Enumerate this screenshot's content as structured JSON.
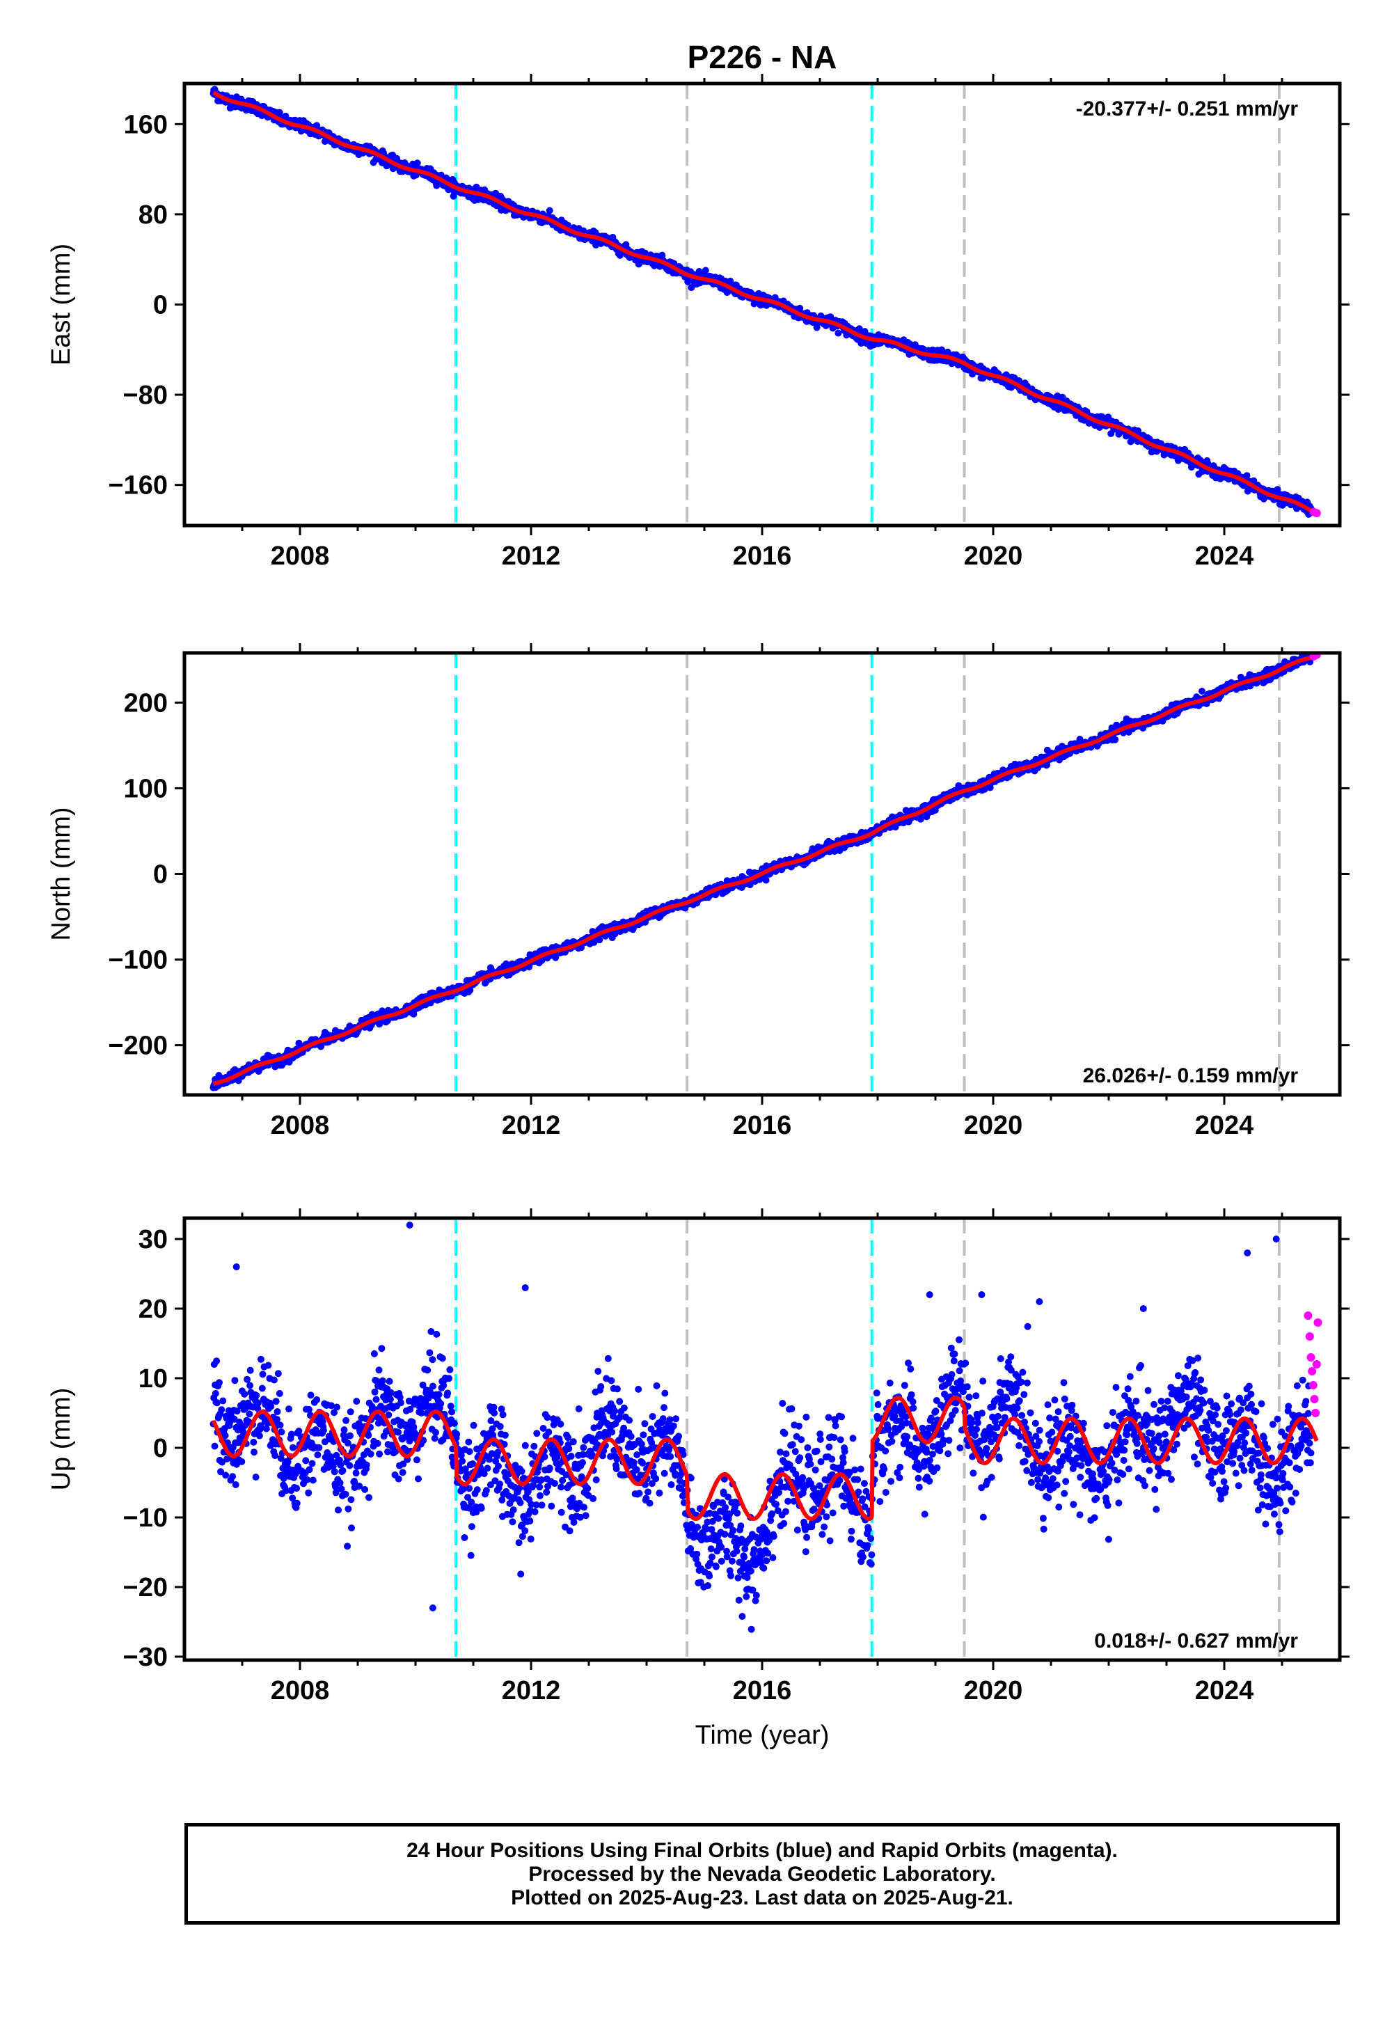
{
  "title": "P226 - NA",
  "caption": [
    "24 Hour Positions Using Final Orbits (blue) and Rapid Orbits (magenta).",
    "Processed by the Nevada Geodetic Laboratory.",
    "Plotted on 2025-Aug-23. Last data on 2025-Aug-21."
  ],
  "colors": {
    "final": "#0000ff",
    "rapid": "#ff00ff",
    "model": "#ff0000",
    "equipment_change": "#00ffff",
    "other_event": "#c0c0c0"
  },
  "chart_data": [
    {
      "type": "scatter",
      "ylabel": "East (mm)",
      "xlabel": "",
      "xlim": [
        2006.0,
        2026.0
      ],
      "ylim": [
        -196,
        196
      ],
      "yticks": [
        160,
        80,
        0,
        -80,
        -160
      ],
      "xticks": [
        2008,
        2012,
        2016,
        2020,
        2024
      ],
      "rate_text": "-20.377+/- 0.251 mm/yr",
      "rate_position": "top-right",
      "start": [
        2006.5,
        188
      ],
      "end": [
        2025.6,
        -185
      ],
      "series": [
        {
          "name": "Final Orbits (blue)",
          "x_range": [
            2006.5,
            2025.5
          ],
          "noise_mm": 2.5
        },
        {
          "name": "Rapid Orbits (magenta)",
          "x": [
            2025.55,
            2025.6
          ],
          "y": [
            -184,
            -185
          ]
        }
      ],
      "model": {
        "trend_anchor": [
          [
            2006.5,
            188
          ],
          [
            2010.7,
            105
          ],
          [
            2014.7,
            28
          ],
          [
            2017.9,
            -30
          ],
          [
            2019.5,
            -52
          ],
          [
            2025.6,
            -185
          ]
        ]
      }
    },
    {
      "type": "scatter",
      "ylabel": "North (mm)",
      "xlabel": "",
      "xlim": [
        2006.0,
        2026.0
      ],
      "ylim": [
        -258,
        258
      ],
      "yticks": [
        200,
        100,
        0,
        -100,
        -200
      ],
      "xticks": [
        2008,
        2012,
        2016,
        2020,
        2024
      ],
      "rate_text": "26.026+/- 0.159 mm/yr",
      "rate_position": "bottom-right",
      "start": [
        2006.5,
        -245
      ],
      "end": [
        2025.6,
        255
      ],
      "series": [
        {
          "name": "Final Orbits (blue)",
          "x_range": [
            2006.5,
            2025.5
          ],
          "noise_mm": 3.0
        },
        {
          "name": "Rapid Orbits (magenta)",
          "x": [
            2025.55,
            2025.6
          ],
          "y": [
            254,
            256
          ]
        }
      ],
      "model": {
        "trend_anchor": [
          [
            2006.5,
            -245
          ],
          [
            2010.7,
            -135
          ],
          [
            2014.7,
            -32
          ],
          [
            2017.9,
            48
          ],
          [
            2019.5,
            97
          ],
          [
            2025.6,
            255
          ]
        ]
      }
    },
    {
      "type": "scatter",
      "ylabel": "Up (mm)",
      "xlabel": "Time (year)",
      "xlim": [
        2006.0,
        2026.0
      ],
      "ylim": [
        -30.5,
        33
      ],
      "yticks": [
        30,
        20,
        10,
        0,
        -10,
        -20,
        -30
      ],
      "xticks": [
        2008,
        2012,
        2016,
        2020,
        2024
      ],
      "rate_text": "0.018+/- 0.627 mm/yr",
      "rate_position": "bottom-right",
      "series": [
        {
          "name": "Final Orbits (blue)",
          "x_range": [
            2006.5,
            2025.5
          ],
          "noise_mm": 3.5,
          "outliers": [
            [
              2009.9,
              32
            ],
            [
              2011.9,
              23
            ],
            [
              2006.9,
              26
            ],
            [
              2010.3,
              -23
            ],
            [
              2024.4,
              28
            ],
            [
              2024.9,
              30
            ],
            [
              2018.9,
              22
            ],
            [
              2019.8,
              22
            ],
            [
              2020.8,
              21
            ],
            [
              2022.6,
              20
            ]
          ]
        },
        {
          "name": "Rapid Orbits (magenta)",
          "x": [
            2025.45,
            2025.48,
            2025.5,
            2025.52,
            2025.54,
            2025.56,
            2025.58,
            2025.6,
            2025.62
          ],
          "y": [
            19,
            16,
            13,
            11,
            9,
            7,
            5,
            12,
            18
          ]
        }
      ],
      "model": {
        "annual_amplitude_mm": 3.2,
        "baseline_anchor": [
          [
            2006.5,
            2
          ],
          [
            2010.7,
            2
          ],
          [
            2010.71,
            -2
          ],
          [
            2014.7,
            -2
          ],
          [
            2014.71,
            -7
          ],
          [
            2017.9,
            -7
          ],
          [
            2017.91,
            4
          ],
          [
            2019.5,
            4
          ],
          [
            2019.51,
            1
          ],
          [
            2025.6,
            1
          ]
        ]
      }
    }
  ],
  "event_lines": [
    {
      "year": 2010.7,
      "kind": "equipment_change"
    },
    {
      "year": 2014.7,
      "kind": "other_event"
    },
    {
      "year": 2017.9,
      "kind": "equipment_change"
    },
    {
      "year": 2019.5,
      "kind": "other_event"
    },
    {
      "year": 2024.95,
      "kind": "other_event"
    }
  ]
}
